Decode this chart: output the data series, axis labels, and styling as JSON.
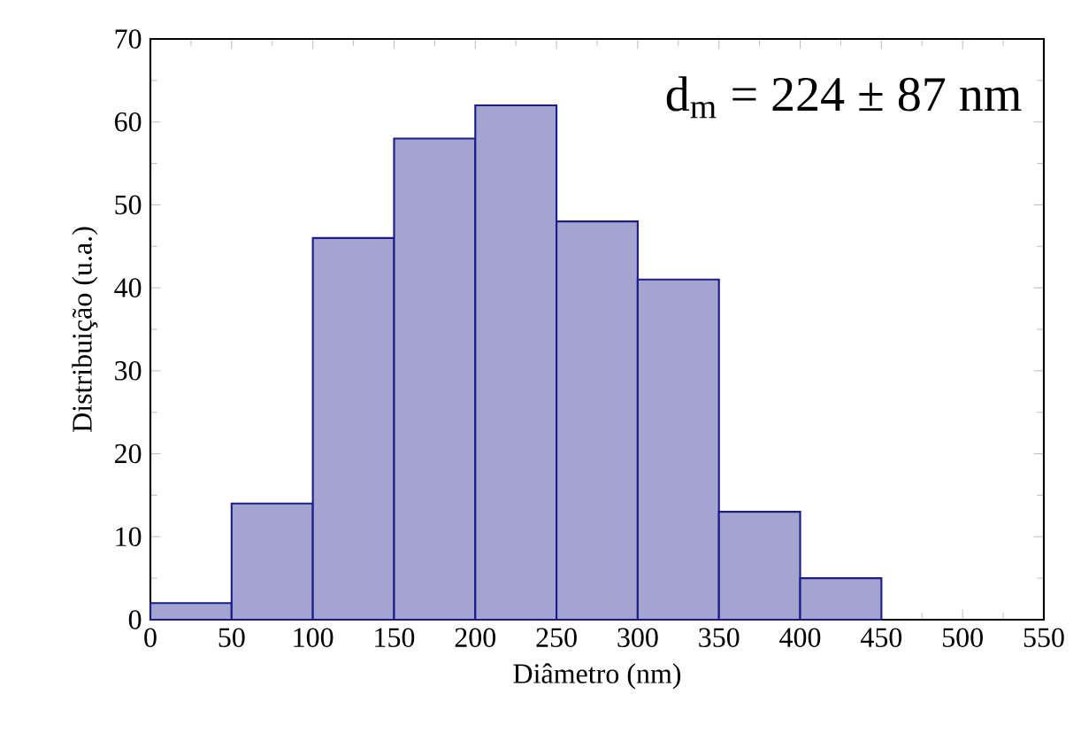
{
  "chart_data": {
    "type": "histogram",
    "xlabel": "Diâmetro (nm)",
    "ylabel": "Distribuição (u.a.)",
    "bins": [
      0,
      50,
      100,
      150,
      200,
      250,
      300,
      350,
      400,
      450
    ],
    "values": [
      2,
      14,
      46,
      58,
      62,
      48,
      41,
      13,
      5
    ],
    "color": "#1c1c8c",
    "xlim": [
      0,
      550
    ],
    "xticks": [
      0,
      50,
      100,
      150,
      200,
      250,
      300,
      350,
      400,
      450,
      500,
      550
    ],
    "ylim": [
      0,
      70
    ],
    "yticks": [
      0,
      10,
      20,
      30,
      40,
      50,
      60,
      70
    ],
    "annotations": [
      "d$_{m}$ = 224 ± 87 nm"
    ]
  }
}
